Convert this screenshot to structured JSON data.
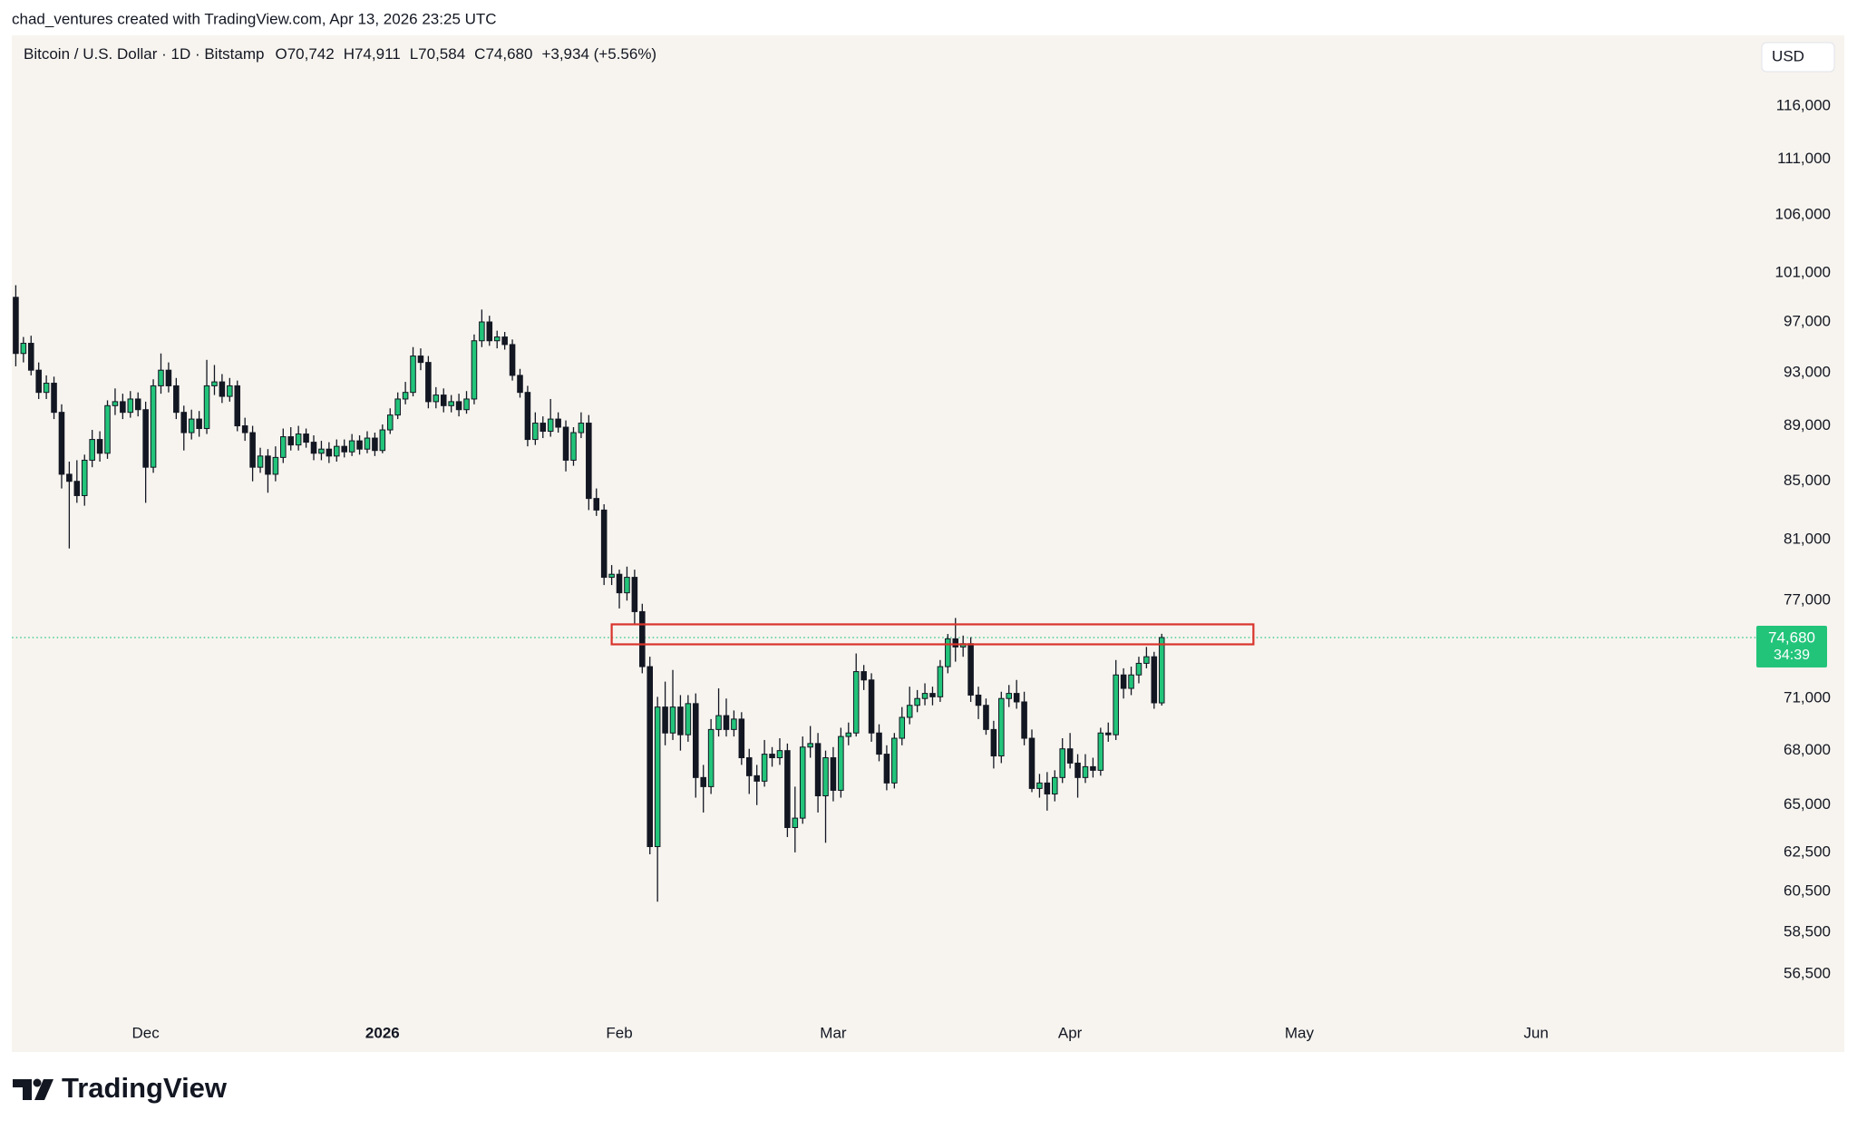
{
  "header": "chad_ventures created with TradingView.com, Apr 13, 2026 23:25 UTC",
  "chart_data": {
    "type": "candlestick",
    "title": "Bitcoin / U.S. Dollar · 1D · Bitstamp",
    "ohlc_legend": [
      "O70,742",
      "H74,911",
      "L70,584",
      "C74,680",
      "+3,934 (+5.56%)"
    ],
    "currency": "USD",
    "up_color": "#22c47a",
    "down_color": "#131722",
    "log_scale": true,
    "grid": false,
    "xlim": [
      -0.5,
      227
    ],
    "xticks": [
      {
        "value": 17,
        "label": "Dec"
      },
      {
        "value": 48,
        "label": "2026"
      },
      {
        "value": 79,
        "label": "Feb"
      },
      {
        "value": 107,
        "label": "Mar"
      },
      {
        "value": 138,
        "label": "Apr"
      },
      {
        "value": 168,
        "label": "May"
      },
      {
        "value": 199,
        "label": "Jun"
      }
    ],
    "ylim": [
      55000,
      123000
    ],
    "yticks": [
      {
        "value": 116000,
        "label": "116,000"
      },
      {
        "value": 111000,
        "label": "111,000"
      },
      {
        "value": 106000,
        "label": "106,000"
      },
      {
        "value": 101000,
        "label": "101,000"
      },
      {
        "value": 97000,
        "label": "97,000"
      },
      {
        "value": 93000,
        "label": "93,000"
      },
      {
        "value": 89000,
        "label": "89,000"
      },
      {
        "value": 85000,
        "label": "85,000"
      },
      {
        "value": 81000,
        "label": "81,000"
      },
      {
        "value": 77000,
        "label": "77,000"
      },
      {
        "value": 71000,
        "label": "71,000"
      },
      {
        "value": 68000,
        "label": "68,000"
      },
      {
        "value": 65000,
        "label": "65,000"
      },
      {
        "value": 62500,
        "label": "62,500"
      },
      {
        "value": 60500,
        "label": "60,500"
      },
      {
        "value": 58500,
        "label": "58,500"
      },
      {
        "value": 56500,
        "label": "56,500"
      }
    ],
    "last_price": {
      "value": 74680,
      "label": "74,680",
      "color": "#22c47a"
    },
    "countdown": "34:39",
    "zone": {
      "x": [
        78,
        162
      ],
      "y": [
        74260,
        75500
      ],
      "color": "#d9342b"
    },
    "ohlc": [
      [
        99000,
        100000,
        93500,
        94500
      ],
      [
        94500,
        95800,
        93800,
        95300
      ],
      [
        95300,
        95900,
        92800,
        93200
      ],
      [
        93200,
        93800,
        91000,
        91500
      ],
      [
        91500,
        92800,
        91000,
        92200
      ],
      [
        92200,
        92700,
        89500,
        90000
      ],
      [
        90000,
        90600,
        84500,
        85500
      ],
      [
        85500,
        86400,
        80400,
        85000
      ],
      [
        85000,
        86500,
        83500,
        84000
      ],
      [
        84000,
        86900,
        83300,
        86500
      ],
      [
        86500,
        88700,
        86000,
        88000
      ],
      [
        88000,
        88600,
        86400,
        87000
      ],
      [
        87000,
        90900,
        86600,
        90500
      ],
      [
        90500,
        91800,
        89800,
        90800
      ],
      [
        90800,
        91400,
        89500,
        90000
      ],
      [
        90000,
        91600,
        89600,
        91000
      ],
      [
        91000,
        91500,
        89700,
        90200
      ],
      [
        90200,
        90800,
        83500,
        86000
      ],
      [
        86000,
        92500,
        85600,
        92000
      ],
      [
        92000,
        94500,
        91400,
        93200
      ],
      [
        93200,
        93800,
        91500,
        92000
      ],
      [
        92000,
        92600,
        89500,
        90000
      ],
      [
        90000,
        90500,
        87200,
        88500
      ],
      [
        88500,
        90200,
        88000,
        89500
      ],
      [
        89500,
        90100,
        88200,
        88800
      ],
      [
        88800,
        94000,
        88400,
        92000
      ],
      [
        92000,
        93600,
        91300,
        92300
      ],
      [
        92300,
        92900,
        90700,
        91200
      ],
      [
        91200,
        92600,
        90800,
        92000
      ],
      [
        92000,
        92400,
        88600,
        89000
      ],
      [
        89000,
        89600,
        87900,
        88500
      ],
      [
        88500,
        89000,
        85000,
        86000
      ],
      [
        86000,
        87400,
        85600,
        86800
      ],
      [
        86800,
        87300,
        84200,
        85500
      ],
      [
        85500,
        87500,
        85000,
        86700
      ],
      [
        86700,
        88800,
        86300,
        88200
      ],
      [
        88200,
        88900,
        87200,
        87600
      ],
      [
        87600,
        89000,
        87200,
        88400
      ],
      [
        88400,
        88800,
        87400,
        87800
      ],
      [
        87800,
        88300,
        86500,
        87000
      ],
      [
        87000,
        87900,
        86500,
        87300
      ],
      [
        87300,
        87800,
        86300,
        86800
      ],
      [
        86800,
        88000,
        86400,
        87500
      ],
      [
        87500,
        88000,
        86700,
        87100
      ],
      [
        87100,
        88400,
        86800,
        87900
      ],
      [
        87900,
        88300,
        86900,
        87300
      ],
      [
        87300,
        88600,
        87000,
        88100
      ],
      [
        88100,
        88500,
        86800,
        87200
      ],
      [
        87200,
        89100,
        87000,
        88700
      ],
      [
        88700,
        90300,
        88400,
        89800
      ],
      [
        89800,
        91500,
        89500,
        91000
      ],
      [
        91000,
        92300,
        90600,
        91500
      ],
      [
        91500,
        95000,
        91200,
        94300
      ],
      [
        94300,
        94900,
        93200,
        93800
      ],
      [
        93800,
        94300,
        90300,
        90800
      ],
      [
        90800,
        91900,
        90300,
        91300
      ],
      [
        91300,
        91800,
        90000,
        90500
      ],
      [
        90500,
        91300,
        90000,
        90800
      ],
      [
        90800,
        91400,
        89700,
        90200
      ],
      [
        90200,
        91600,
        89900,
        91000
      ],
      [
        91000,
        96000,
        90600,
        95500
      ],
      [
        95500,
        98000,
        95000,
        97000
      ],
      [
        97000,
        97500,
        95100,
        95500
      ],
      [
        95500,
        96300,
        94900,
        95800
      ],
      [
        95800,
        96200,
        94800,
        95200
      ],
      [
        95200,
        95600,
        92400,
        92800
      ],
      [
        92800,
        93300,
        91100,
        91500
      ],
      [
        91500,
        92000,
        87500,
        88000
      ],
      [
        88000,
        90000,
        87600,
        89200
      ],
      [
        89200,
        89700,
        88100,
        88600
      ],
      [
        88600,
        91000,
        88200,
        89500
      ],
      [
        89500,
        90000,
        88500,
        88900
      ],
      [
        88900,
        89400,
        85700,
        86500
      ],
      [
        86500,
        88900,
        86100,
        88500
      ],
      [
        88500,
        90000,
        88100,
        89200
      ],
      [
        89200,
        89800,
        83000,
        83800
      ],
      [
        83800,
        84500,
        82600,
        83000
      ],
      [
        83000,
        83400,
        78000,
        78500
      ],
      [
        78500,
        79300,
        78000,
        78700
      ],
      [
        78700,
        79000,
        76500,
        77500
      ],
      [
        77500,
        79200,
        77000,
        78500
      ],
      [
        78500,
        79000,
        75500,
        76300
      ],
      [
        76300,
        76800,
        72500,
        72900
      ],
      [
        72900,
        73500,
        62400,
        62800
      ],
      [
        62800,
        71100,
        60000,
        70500
      ],
      [
        70500,
        72000,
        68300,
        69000
      ],
      [
        69000,
        72700,
        68600,
        70500
      ],
      [
        70500,
        71200,
        68000,
        68900
      ],
      [
        68900,
        71200,
        68500,
        70700
      ],
      [
        70700,
        71300,
        65400,
        66500
      ],
      [
        66500,
        67200,
        64600,
        66000
      ],
      [
        66000,
        69800,
        65600,
        69200
      ],
      [
        69200,
        71600,
        68800,
        70000
      ],
      [
        70000,
        71000,
        68800,
        69200
      ],
      [
        69200,
        70300,
        68800,
        69800
      ],
      [
        69800,
        70200,
        67200,
        67600
      ],
      [
        67600,
        68100,
        65600,
        66600
      ],
      [
        66600,
        67200,
        65000,
        66300
      ],
      [
        66300,
        68600,
        66000,
        67800
      ],
      [
        67800,
        68200,
        67100,
        67600
      ],
      [
        67600,
        68700,
        67200,
        68000
      ],
      [
        68000,
        68400,
        63300,
        63800
      ],
      [
        63800,
        66000,
        62500,
        64300
      ],
      [
        64300,
        68800,
        64000,
        68200
      ],
      [
        68200,
        69400,
        67600,
        68400
      ],
      [
        68400,
        69000,
        64600,
        65500
      ],
      [
        65500,
        68000,
        63000,
        67600
      ],
      [
        67600,
        68200,
        65200,
        65800
      ],
      [
        65800,
        69300,
        65400,
        68800
      ],
      [
        68800,
        69600,
        68300,
        69000
      ],
      [
        69000,
        73700,
        68800,
        72600
      ],
      [
        72600,
        73000,
        71500,
        72100
      ],
      [
        72100,
        72500,
        68500,
        69000
      ],
      [
        69000,
        69500,
        67400,
        67800
      ],
      [
        67800,
        68300,
        65800,
        66200
      ],
      [
        66200,
        69000,
        65900,
        68700
      ],
      [
        68700,
        70500,
        68300,
        69900
      ],
      [
        69900,
        71700,
        69500,
        70600
      ],
      [
        70600,
        71500,
        70200,
        71000
      ],
      [
        71000,
        71900,
        70600,
        71300
      ],
      [
        71300,
        71700,
        70600,
        71100
      ],
      [
        71100,
        73300,
        70800,
        72900
      ],
      [
        72900,
        74900,
        72500,
        74600
      ],
      [
        74600,
        75900,
        73200,
        74100
      ],
      [
        74100,
        74800,
        73500,
        74300
      ],
      [
        74300,
        74700,
        70800,
        71200
      ],
      [
        71200,
        71700,
        69800,
        70600
      ],
      [
        70600,
        71000,
        68900,
        69200
      ],
      [
        69200,
        69700,
        67000,
        67700
      ],
      [
        67700,
        71400,
        67300,
        71000
      ],
      [
        71000,
        71800,
        70500,
        71300
      ],
      [
        71300,
        72100,
        70400,
        70800
      ],
      [
        70800,
        71400,
        68300,
        68700
      ],
      [
        68700,
        69200,
        65700,
        65900
      ],
      [
        65900,
        66700,
        65400,
        66200
      ],
      [
        66200,
        66800,
        64700,
        65600
      ],
      [
        65600,
        66900,
        65200,
        66500
      ],
      [
        66500,
        68700,
        66200,
        68100
      ],
      [
        68100,
        69000,
        67000,
        67300
      ],
      [
        67300,
        67800,
        65400,
        66500
      ],
      [
        66500,
        67800,
        66200,
        67100
      ],
      [
        67100,
        67600,
        66500,
        66900
      ],
      [
        66900,
        69300,
        66600,
        69000
      ],
      [
        69000,
        69600,
        68500,
        68900
      ],
      [
        68900,
        73300,
        68600,
        72400
      ],
      [
        72400,
        72800,
        71000,
        71600
      ],
      [
        71600,
        72900,
        71200,
        72400
      ],
      [
        72400,
        73500,
        71900,
        73100
      ],
      [
        73100,
        74100,
        72800,
        73500
      ],
      [
        73500,
        73800,
        70400,
        70746
      ],
      [
        70742,
        74911,
        70584,
        74680
      ]
    ]
  },
  "footer": "TradingView"
}
